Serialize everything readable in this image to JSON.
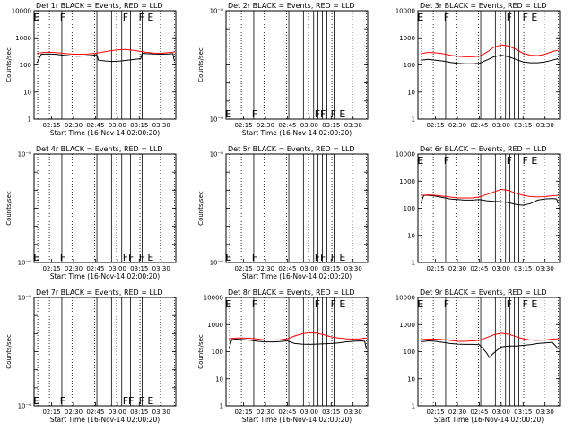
{
  "figure": {
    "background": "#ffffff",
    "axis_color": "#000000",
    "events_color": "#000000",
    "lld_color": "#ff0000"
  },
  "chart_data": [
    {
      "type": "line",
      "title": "Det 1r  BLACK = Events, RED = LLD",
      "xlabel": "Start Time (16-Nov-14 02:00:20)",
      "ylabel": "Counts/sec",
      "scale": "log",
      "ylim": [
        1,
        10000
      ],
      "yticks": [
        "1",
        "10",
        "100",
        "1000",
        "10000"
      ],
      "xticks": [
        "02:15",
        "02:30",
        "02:45",
        "03:00",
        "03:15",
        "03:30"
      ],
      "flags": [
        "E",
        "F",
        "F",
        "F",
        "E"
      ],
      "flag_y": 10000,
      "series": [
        {
          "name": "Events",
          "color": "#000000",
          "x": [
            "02:05",
            "02:08",
            "02:13",
            "02:18",
            "02:23",
            "02:28",
            "02:33",
            "02:38",
            "02:43",
            "02:46",
            "02:47",
            "02:52",
            "02:57",
            "03:02",
            "03:07",
            "03:12",
            "03:16",
            "03:17",
            "03:20",
            "03:25",
            "03:30",
            "03:35",
            "03:38",
            "03:39"
          ],
          "y": [
            120,
            250,
            255,
            248,
            230,
            215,
            210,
            215,
            225,
            240,
            150,
            140,
            135,
            140,
            150,
            160,
            170,
            270,
            260,
            255,
            250,
            255,
            260,
            140
          ]
        },
        {
          "name": "LLD",
          "color": "#ff0000",
          "x": [
            "02:05",
            "02:10",
            "02:15",
            "02:20",
            "02:25",
            "02:30",
            "02:35",
            "02:40",
            "02:45",
            "02:50",
            "02:55",
            "03:00",
            "03:05",
            "03:10",
            "03:15",
            "03:20",
            "03:25",
            "03:30",
            "03:35",
            "03:39"
          ],
          "y": [
            270,
            290,
            290,
            280,
            260,
            250,
            250,
            255,
            270,
            300,
            330,
            360,
            370,
            350,
            320,
            290,
            275,
            270,
            285,
            300
          ]
        }
      ]
    },
    {
      "type": "line",
      "title": "Det 2r  BLACK = Events, RED = LLD",
      "xlabel": "Start Time (16-Nov-14 02:00:20)",
      "ylabel": "Counts/sec",
      "scale": "log",
      "ylim": [
        1e-06,
        1e-08
      ],
      "yticks": [
        "10⁻⁶",
        "",
        "",
        "",
        "",
        "",
        "10⁻⁸"
      ],
      "xticks": [
        "02:15",
        "02:30",
        "02:45",
        "03:00",
        "03:15",
        "03:30"
      ],
      "flags": [
        "E",
        "F",
        "FF",
        "F",
        "E"
      ],
      "flag_y": 1e-06,
      "series": []
    },
    {
      "type": "line",
      "title": "Det 3r  BLACK = Events, RED = LLD",
      "xlabel": "",
      "ylabel": "",
      "scale": "log",
      "ylim": [
        1,
        10000
      ],
      "yticks": [
        "1",
        "10",
        "100",
        "1000",
        "10000"
      ],
      "xticks": [
        "02:15",
        "02:30",
        "02:45",
        "03:00",
        "03:15",
        "03:30"
      ],
      "flags": [
        "E",
        "F",
        "F",
        "F",
        "E"
      ],
      "flag_y": 10000,
      "series": [
        {
          "name": "Events",
          "color": "#000000",
          "x": [
            "02:05",
            "02:10",
            "02:15",
            "02:20",
            "02:25",
            "02:30",
            "02:35",
            "02:40",
            "02:45",
            "02:50",
            "02:55",
            "03:00",
            "03:05",
            "03:10",
            "03:15",
            "03:20",
            "03:25",
            "03:30",
            "03:35",
            "03:39"
          ],
          "y": [
            150,
            160,
            150,
            140,
            125,
            115,
            110,
            110,
            115,
            150,
            200,
            230,
            200,
            160,
            130,
            120,
            120,
            130,
            150,
            170
          ]
        },
        {
          "name": "LLD",
          "color": "#ff0000",
          "x": [
            "02:05",
            "02:10",
            "02:15",
            "02:20",
            "02:25",
            "02:30",
            "02:35",
            "02:40",
            "02:45",
            "02:50",
            "02:55",
            "03:00",
            "03:05",
            "03:10",
            "03:15",
            "03:20",
            "03:25",
            "03:30",
            "03:35",
            "03:39"
          ],
          "y": [
            260,
            290,
            280,
            260,
            230,
            210,
            200,
            200,
            210,
            290,
            450,
            550,
            500,
            380,
            270,
            230,
            220,
            250,
            310,
            350
          ]
        }
      ]
    },
    {
      "type": "line",
      "title": "Det 4r  BLACK = Events, RED = LLD",
      "xlabel": "Start Time (16-Nov-14 02:00:20)",
      "ylabel": "Counts/sec",
      "scale": "log",
      "ylim": [
        1e-06,
        1e-08
      ],
      "yticks": [
        "10⁻⁶",
        "",
        "",
        "",
        "",
        "",
        "10⁻⁸"
      ],
      "xticks": [
        "02:15",
        "02:30",
        "02:45",
        "03:00",
        "03:15",
        "03:30"
      ],
      "flags": [
        "E",
        "F",
        "FF",
        "F",
        "E"
      ],
      "flag_y": 1e-06,
      "series": []
    },
    {
      "type": "line",
      "title": "Det 5r  BLACK = Events, RED = LLD",
      "xlabel": "Start Time (16-Nov-14 02:00:20)",
      "ylabel": "Counts/sec",
      "scale": "log",
      "ylim": [
        1e-06,
        1e-08
      ],
      "yticks": [
        "10⁻⁶",
        "",
        "",
        "",
        "",
        "",
        "10⁻⁸"
      ],
      "xticks": [
        "02:15",
        "02:30",
        "02:45",
        "03:00",
        "03:15",
        "03:30"
      ],
      "flags": [
        "E",
        "F",
        "FF",
        "F",
        "E"
      ],
      "flag_y": 1e-06,
      "series": []
    },
    {
      "type": "line",
      "title": "Det 6r  BLACK = Events, RED = LLD",
      "xlabel": "",
      "ylabel": "",
      "scale": "log",
      "ylim": [
        1,
        10000
      ],
      "yticks": [
        "1",
        "10",
        "100",
        "1000",
        "10000"
      ],
      "xticks": [
        "02:15",
        "02:30",
        "02:45",
        "03:00",
        "03:15",
        "03:30"
      ],
      "flags": [
        "E",
        "F",
        "F",
        "F",
        "E"
      ],
      "flag_y": 10000,
      "series": [
        {
          "name": "Events",
          "color": "#000000",
          "x": [
            "02:05",
            "02:07",
            "02:10",
            "02:15",
            "02:20",
            "02:25",
            "02:30",
            "02:35",
            "02:40",
            "02:45",
            "02:50",
            "02:55",
            "03:00",
            "03:05",
            "03:10",
            "03:15",
            "03:20",
            "03:25",
            "03:30",
            "03:35",
            "03:38",
            "03:39"
          ],
          "y": [
            150,
            300,
            300,
            280,
            250,
            220,
            210,
            200,
            200,
            210,
            190,
            180,
            175,
            160,
            140,
            130,
            150,
            200,
            220,
            230,
            220,
            150
          ]
        },
        {
          "name": "LLD",
          "color": "#ff0000",
          "x": [
            "02:05",
            "02:10",
            "02:15",
            "02:20",
            "02:25",
            "02:30",
            "02:35",
            "02:40",
            "02:45",
            "02:50",
            "02:55",
            "03:00",
            "03:05",
            "03:10",
            "03:15",
            "03:20",
            "03:25",
            "03:30",
            "03:35",
            "03:39"
          ],
          "y": [
            300,
            310,
            300,
            280,
            260,
            240,
            240,
            240,
            260,
            320,
            400,
            500,
            450,
            360,
            300,
            270,
            260,
            270,
            290,
            300
          ]
        }
      ]
    },
    {
      "type": "line",
      "title": "Det 7r  BLACK = Events, RED = LLD",
      "xlabel": "Start Time (16-Nov-14 02:00:20)",
      "ylabel": "Counts/sec",
      "scale": "log",
      "ylim": [
        1e-06,
        1e-08
      ],
      "yticks": [
        "10⁻⁶",
        "",
        "",
        "",
        "",
        "",
        "10⁻⁸"
      ],
      "xticks": [
        "02:15",
        "02:30",
        "02:45",
        "03:00",
        "03:15",
        "03:30"
      ],
      "flags": [
        "E",
        "F",
        "FF",
        "F",
        "E"
      ],
      "flag_y": 1e-06,
      "series": []
    },
    {
      "type": "line",
      "title": "Det 8r  BLACK = Events, RED = LLD",
      "xlabel": "Start Time (16-Nov-14 02:00:20)",
      "ylabel": "Counts/sec",
      "scale": "log",
      "ylim": [
        1,
        10000
      ],
      "yticks": [
        "1",
        "10",
        "100",
        "1000",
        "10000"
      ],
      "xticks": [
        "02:15",
        "02:30",
        "02:45",
        "03:00",
        "03:15",
        "03:30"
      ],
      "flags": [
        "E",
        "F",
        "F",
        "F",
        "E"
      ],
      "flag_y": 10000,
      "series": [
        {
          "name": "Events",
          "color": "#000000",
          "x": [
            "02:05",
            "02:07",
            "02:10",
            "02:15",
            "02:20",
            "02:25",
            "02:30",
            "02:35",
            "02:40",
            "02:45",
            "02:50",
            "02:55",
            "03:00",
            "03:05",
            "03:10",
            "03:15",
            "03:20",
            "03:25",
            "03:30",
            "03:35",
            "03:38",
            "03:39"
          ],
          "y": [
            130,
            280,
            290,
            280,
            260,
            240,
            230,
            230,
            235,
            250,
            200,
            190,
            185,
            190,
            195,
            200,
            210,
            230,
            240,
            250,
            240,
            130
          ]
        },
        {
          "name": "LLD",
          "color": "#ff0000",
          "x": [
            "02:05",
            "02:10",
            "02:15",
            "02:20",
            "02:25",
            "02:30",
            "02:35",
            "02:40",
            "02:45",
            "02:50",
            "02:55",
            "03:00",
            "03:05",
            "03:10",
            "03:15",
            "03:20",
            "03:25",
            "03:30",
            "03:35",
            "03:39"
          ],
          "y": [
            300,
            320,
            320,
            310,
            290,
            270,
            270,
            275,
            300,
            380,
            460,
            500,
            480,
            420,
            350,
            320,
            300,
            290,
            300,
            320
          ]
        }
      ]
    },
    {
      "type": "line",
      "title": "Det 9r  BLACK = Events, RED = LLD",
      "xlabel": "Start Time (16-Nov-14 02:00:20)",
      "ylabel": "",
      "scale": "log",
      "ylim": [
        1,
        10000
      ],
      "yticks": [
        "1",
        "10",
        "100",
        "1000",
        "10000"
      ],
      "xticks": [
        "02:15",
        "02:30",
        "02:45",
        "03:00",
        "03:15",
        "03:30"
      ],
      "flags": [
        "E",
        "F",
        "F",
        "F",
        "E"
      ],
      "flag_y": 10000,
      "series": [
        {
          "name": "Events",
          "color": "#000000",
          "x": [
            "02:05",
            "02:10",
            "02:15",
            "02:20",
            "02:25",
            "02:30",
            "02:35",
            "02:40",
            "02:45",
            "02:48",
            "02:50",
            "02:52",
            "02:54",
            "02:56",
            "03:00",
            "03:05",
            "03:10",
            "03:15",
            "03:20",
            "03:25",
            "03:30",
            "03:35",
            "03:39"
          ],
          "y": [
            230,
            250,
            240,
            220,
            200,
            190,
            185,
            185,
            180,
            120,
            90,
            60,
            80,
            100,
            150,
            160,
            160,
            170,
            180,
            200,
            210,
            220,
            130
          ]
        },
        {
          "name": "LLD",
          "color": "#ff0000",
          "x": [
            "02:05",
            "02:10",
            "02:15",
            "02:20",
            "02:25",
            "02:30",
            "02:35",
            "02:40",
            "02:45",
            "02:50",
            "02:55",
            "03:00",
            "03:05",
            "03:10",
            "03:15",
            "03:20",
            "03:25",
            "03:30",
            "03:35",
            "03:39"
          ],
          "y": [
            280,
            290,
            290,
            280,
            260,
            240,
            240,
            250,
            260,
            330,
            420,
            480,
            440,
            360,
            300,
            270,
            260,
            270,
            290,
            300
          ]
        }
      ]
    }
  ]
}
